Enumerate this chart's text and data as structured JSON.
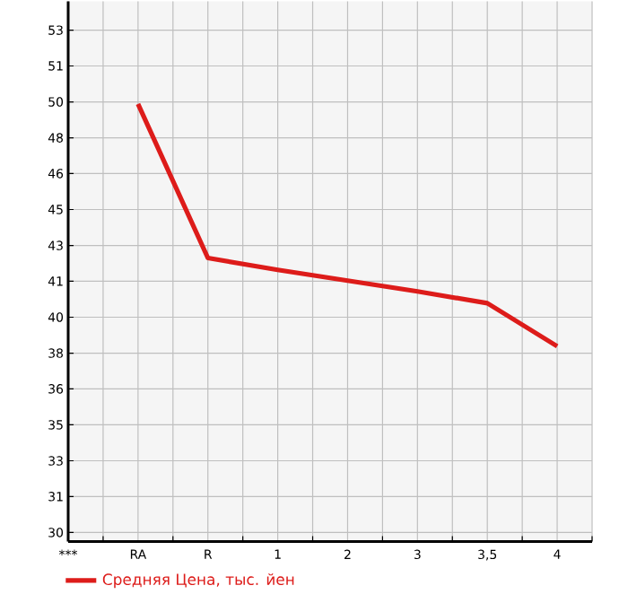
{
  "chart_data": {
    "type": "line",
    "categories": [
      "***",
      "RA",
      "R",
      "1",
      "2",
      "3",
      "3,5",
      "4"
    ],
    "series": [
      {
        "name": "Средняя Цена, тыс. йен",
        "color": "#dd1c1a",
        "values": [
          null,
          49.5,
          42.35,
          41.8,
          41.3,
          40.8,
          40.25,
          38.25
        ]
      }
    ],
    "ylim": [
      29.18,
      54.27
    ],
    "yticks": [
      {
        "value": 29.6,
        "label": "30"
      },
      {
        "value": 31.27,
        "label": "31"
      },
      {
        "value": 32.93,
        "label": "33"
      },
      {
        "value": 34.6,
        "label": "35"
      },
      {
        "value": 36.27,
        "label": "36"
      },
      {
        "value": 37.93,
        "label": "38"
      },
      {
        "value": 39.6,
        "label": "40"
      },
      {
        "value": 41.27,
        "label": "41"
      },
      {
        "value": 42.93,
        "label": "43"
      },
      {
        "value": 44.6,
        "label": "45"
      },
      {
        "value": 46.27,
        "label": "46"
      },
      {
        "value": 47.93,
        "label": "48"
      },
      {
        "value": 49.6,
        "label": "50"
      },
      {
        "value": 51.27,
        "label": "51"
      },
      {
        "value": 52.93,
        "label": "53"
      }
    ],
    "grid": true,
    "legend": "bottom left",
    "marker": "none",
    "line_style": "solid"
  }
}
